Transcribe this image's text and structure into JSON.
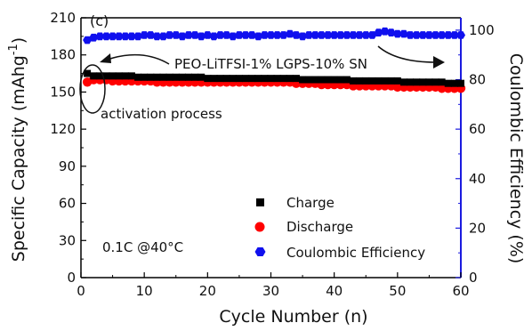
{
  "chart_data": {
    "type": "scatter",
    "panel_label": "(c)",
    "xlabel": "Cycle Number (n)",
    "ylabel_left": "Specific Capacity (mAhg",
    "ylabel_left_sup": "-1",
    "ylabel_left_close": ")",
    "ylabel_right": "Coulombic Efficiency (%)",
    "xlim": [
      0,
      60
    ],
    "ylim_left": [
      0,
      210
    ],
    "ylim_right": [
      0,
      105
    ],
    "xticks": [
      "0",
      "10",
      "20",
      "30",
      "40",
      "50",
      "60"
    ],
    "yticks_left": [
      "0",
      "30",
      "60",
      "90",
      "120",
      "150",
      "180",
      "210"
    ],
    "yticks_right": [
      "0",
      "20",
      "40",
      "60",
      "80",
      "100"
    ],
    "annotations": {
      "electrolyte": "PEO-LiTFSI-1% LGPS-10% SN",
      "activation": "activation process",
      "condition": "0.1C  @40°C"
    },
    "legend": [
      "Charge",
      "Discharge",
      "Coulombic Efficiency"
    ],
    "colors": {
      "charge": "#000000",
      "discharge": "#ff0000",
      "coulombic": "#1010ee",
      "right_axis": "#1a1adf"
    },
    "series": [
      {
        "name": "Charge",
        "axis": "left",
        "x": [
          1,
          2,
          3,
          4,
          5,
          6,
          7,
          8,
          9,
          10,
          11,
          12,
          13,
          14,
          15,
          16,
          17,
          18,
          19,
          20,
          21,
          22,
          23,
          24,
          25,
          26,
          27,
          28,
          29,
          30,
          31,
          32,
          33,
          34,
          35,
          36,
          37,
          38,
          39,
          40,
          41,
          42,
          43,
          44,
          45,
          46,
          47,
          48,
          49,
          50,
          51,
          52,
          53,
          54,
          55,
          56,
          57,
          58,
          59,
          60
        ],
        "values": [
          165,
          163,
          163,
          163,
          163,
          163,
          163,
          163,
          162,
          162,
          162,
          162,
          162,
          162,
          162,
          162,
          162,
          162,
          162,
          161,
          161,
          161,
          161,
          161,
          161,
          161,
          161,
          161,
          161,
          161,
          161,
          161,
          161,
          161,
          160,
          160,
          160,
          160,
          160,
          160,
          160,
          160,
          159,
          159,
          159,
          159,
          159,
          159,
          159,
          159,
          158,
          158,
          158,
          158,
          158,
          158,
          158,
          157,
          157,
          157
        ]
      },
      {
        "name": "Discharge",
        "axis": "left",
        "x": [
          1,
          2,
          3,
          4,
          5,
          6,
          7,
          8,
          9,
          10,
          11,
          12,
          13,
          14,
          15,
          16,
          17,
          18,
          19,
          20,
          21,
          22,
          23,
          24,
          25,
          26,
          27,
          28,
          29,
          30,
          31,
          32,
          33,
          34,
          35,
          36,
          37,
          38,
          39,
          40,
          41,
          42,
          43,
          44,
          45,
          46,
          47,
          48,
          49,
          50,
          51,
          52,
          53,
          54,
          55,
          56,
          57,
          58,
          59,
          60
        ],
        "values": [
          158,
          160,
          160,
          160,
          159,
          159,
          159,
          159,
          159,
          159,
          159,
          158,
          158,
          158,
          158,
          158,
          158,
          158,
          158,
          158,
          158,
          158,
          158,
          158,
          158,
          158,
          158,
          158,
          158,
          158,
          158,
          158,
          158,
          157,
          157,
          157,
          157,
          156,
          156,
          156,
          156,
          156,
          155,
          155,
          155,
          155,
          155,
          155,
          155,
          154,
          154,
          154,
          154,
          154,
          154,
          154,
          153,
          153,
          153,
          153
        ]
      },
      {
        "name": "Coulombic Efficiency",
        "axis": "right",
        "x": [
          1,
          2,
          3,
          4,
          5,
          6,
          7,
          8,
          9,
          10,
          11,
          12,
          13,
          14,
          15,
          16,
          17,
          18,
          19,
          20,
          21,
          22,
          23,
          24,
          25,
          26,
          27,
          28,
          29,
          30,
          31,
          32,
          33,
          34,
          35,
          36,
          37,
          38,
          39,
          40,
          41,
          42,
          43,
          44,
          45,
          46,
          47,
          48,
          49,
          50,
          51,
          52,
          53,
          54,
          55,
          56,
          57,
          58,
          59,
          60
        ],
        "values": [
          96,
          97,
          97.5,
          97.5,
          97.5,
          97.5,
          97.5,
          97.5,
          97.5,
          98,
          98,
          97.5,
          97.5,
          98,
          98,
          97.5,
          98,
          98,
          97.5,
          98,
          97.5,
          98,
          98,
          97.5,
          98,
          98,
          98,
          97.5,
          98,
          98,
          98,
          98,
          98.5,
          98,
          97.5,
          98,
          98,
          98,
          98,
          98,
          98,
          98,
          98,
          98,
          98,
          98,
          99,
          99.5,
          99,
          98.5,
          98.5,
          98,
          98,
          98,
          98,
          98,
          98,
          98,
          98,
          98
        ]
      }
    ]
  }
}
